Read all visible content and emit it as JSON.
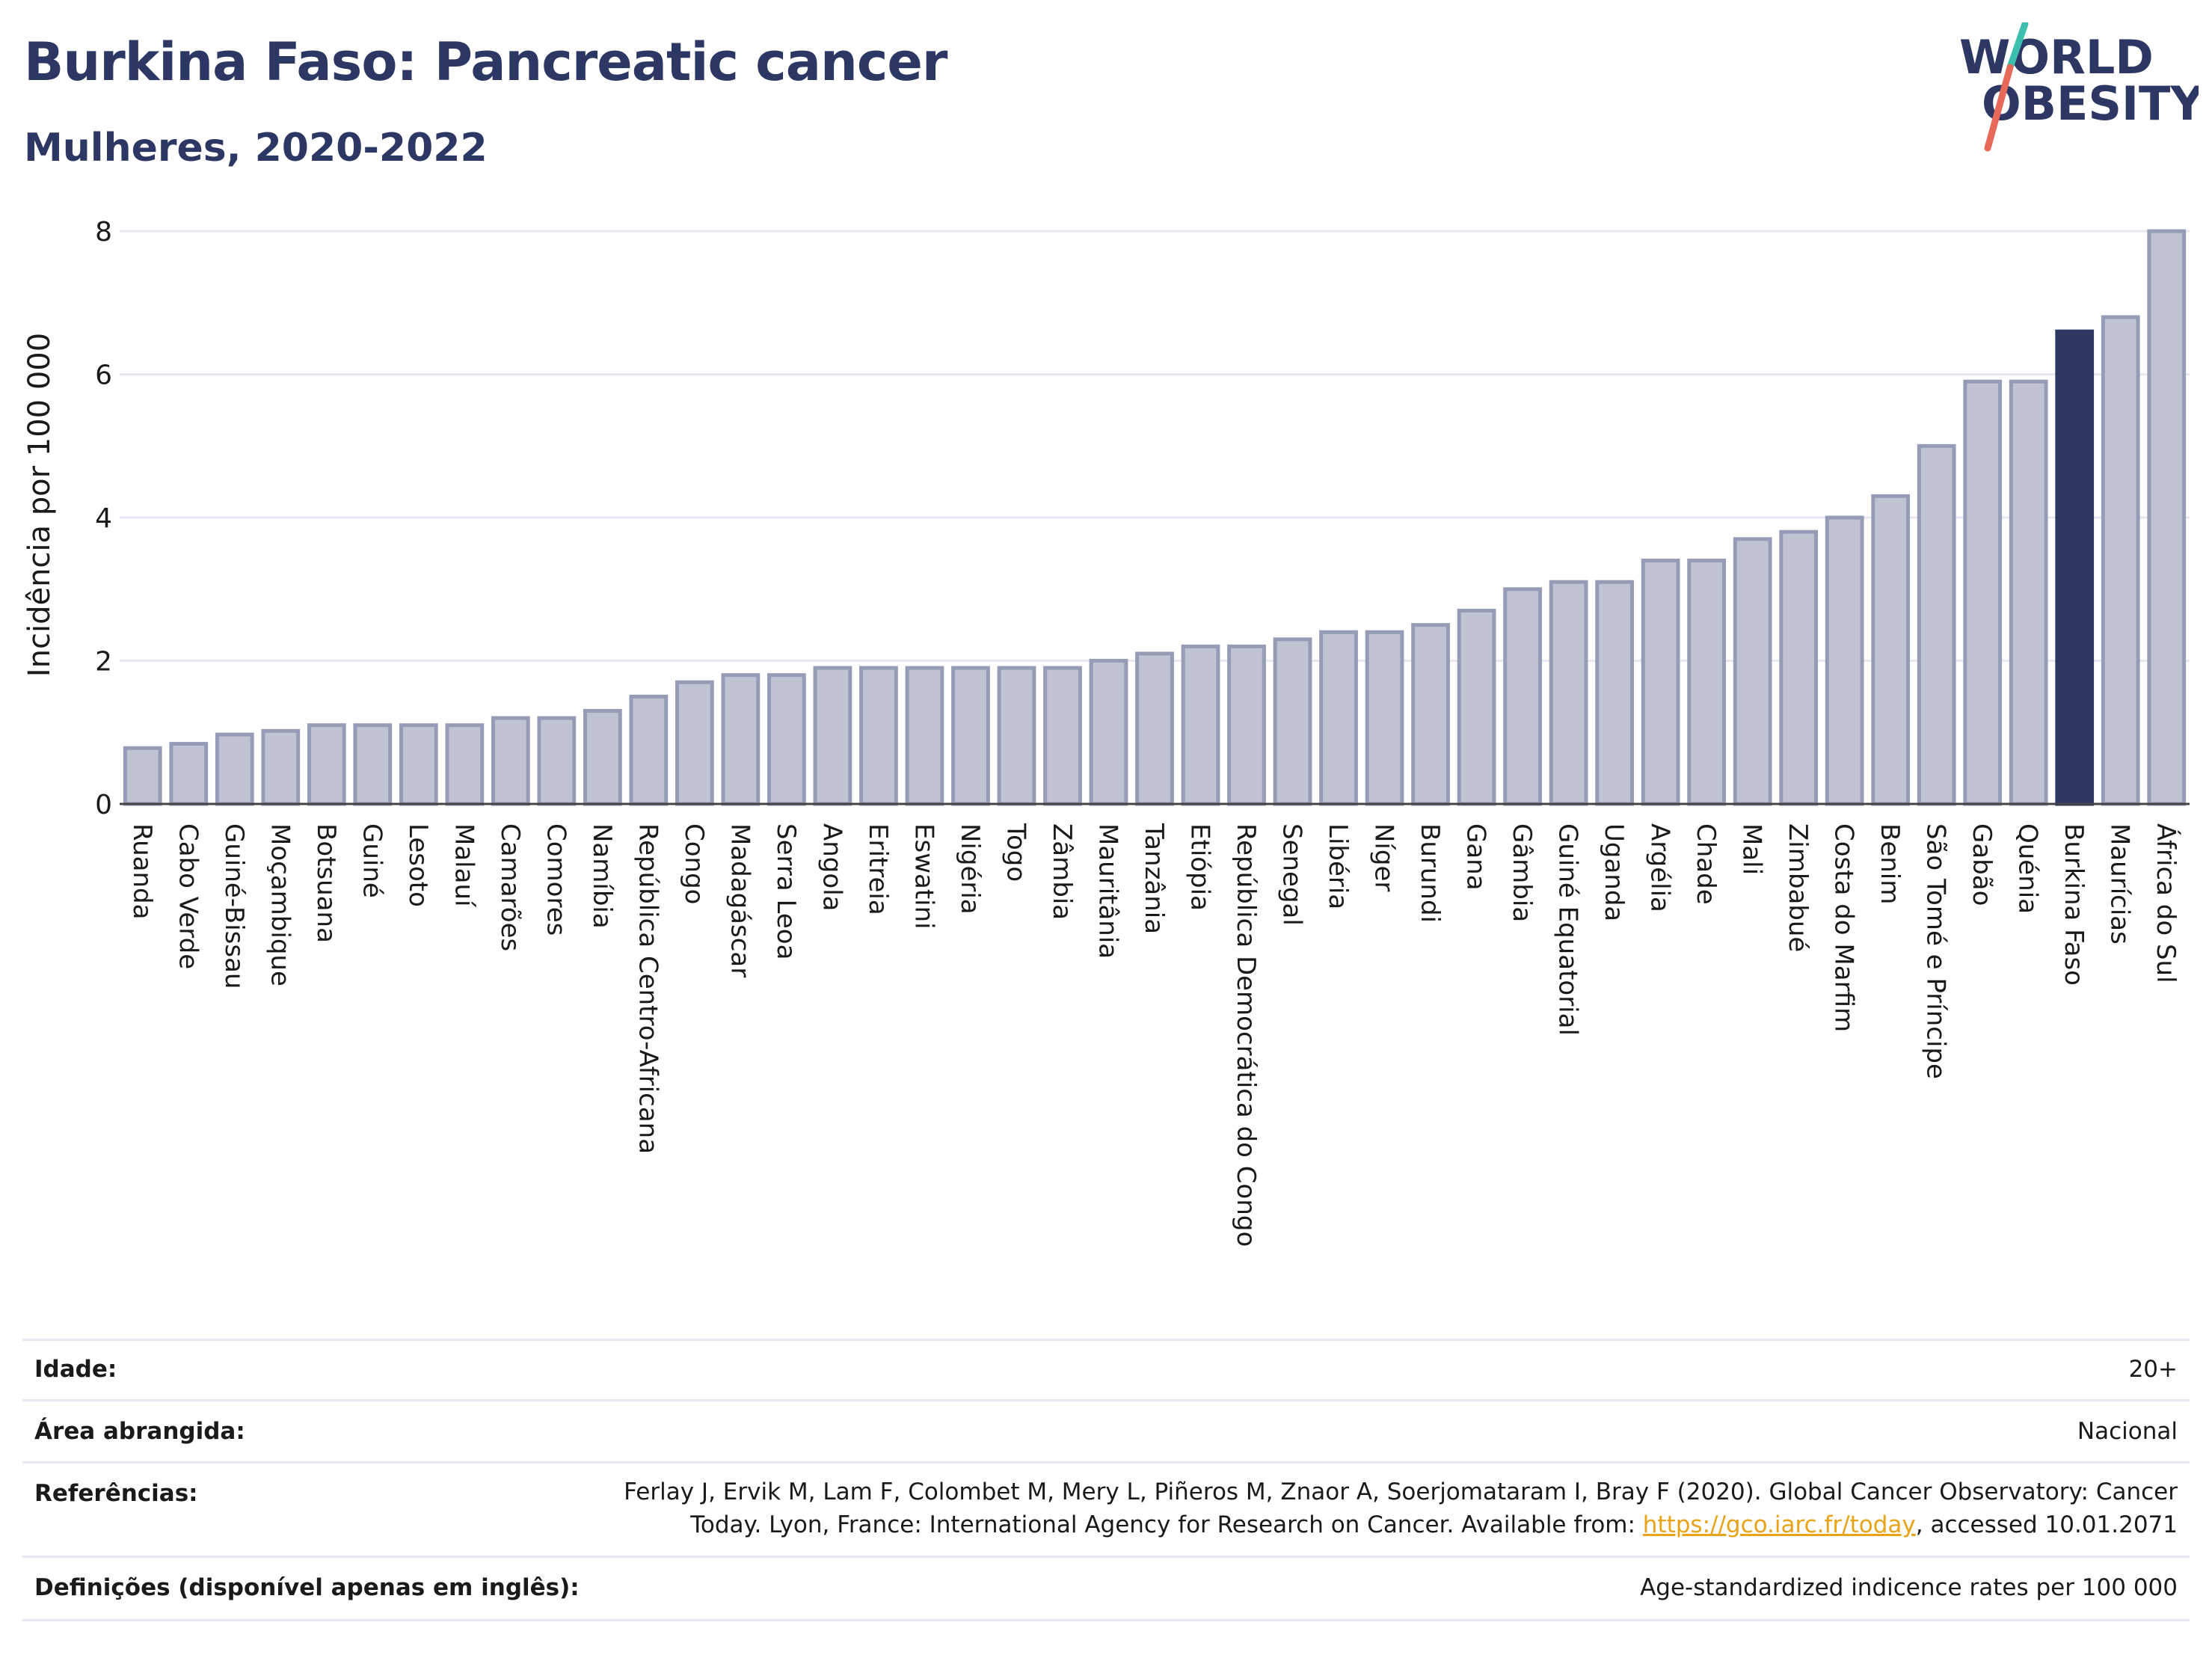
{
  "title": "Burkina Faso: Pancreatic cancer",
  "subtitle": "Mulheres, 2020-2022",
  "logo": {
    "line1": "WORLD",
    "line2": "OBESITY",
    "accent_colors": [
      "#3cbfae",
      "#e8695a"
    ],
    "text_color": "#2c3863"
  },
  "colors": {
    "bar_fill": "#bfc3d2",
    "bar_stroke": "#969cb6",
    "highlight": "#2c3863",
    "grid": "#e6e8ef"
  },
  "chart_data": {
    "type": "bar",
    "ylabel": "Incidência por 100 000",
    "ylim": [
      0,
      8.2
    ],
    "yticks": [
      0,
      2,
      4,
      6,
      8
    ],
    "highlight": "Burkina Faso",
    "categories": [
      "Ruanda",
      "Cabo Verde",
      "Guiné-Bissau",
      "Moçambique",
      "Botsuana",
      "Guiné",
      "Lesoto",
      "Malauí",
      "Camarões",
      "Comores",
      "Namíbia",
      "República Centro-Africana",
      "Congo",
      "Madagáscar",
      "Serra Leoa",
      "Angola",
      "Eritreia",
      "Eswatini",
      "Nigéria",
      "Togo",
      "Zâmbia",
      "Mauritânia",
      "Tanzânia",
      "Etiópia",
      "República Democrática do Congo",
      "Senegal",
      "Libéria",
      "Níger",
      "Burundi",
      "Gana",
      "Gâmbia",
      "Guiné Equatorial",
      "Uganda",
      "Argélia",
      "Chade",
      "Mali",
      "Zimbabué",
      "Costa do Marfim",
      "Benim",
      "São Tomé e Príncipe",
      "Gabão",
      "Quénia",
      "Burkina Faso",
      "Maurícias",
      "África do Sul"
    ],
    "values": [
      0.78,
      0.84,
      0.97,
      1.02,
      1.1,
      1.1,
      1.1,
      1.1,
      1.2,
      1.2,
      1.3,
      1.5,
      1.7,
      1.8,
      1.8,
      1.9,
      1.9,
      1.9,
      1.9,
      1.9,
      1.9,
      2.0,
      2.1,
      2.2,
      2.2,
      2.3,
      2.4,
      2.4,
      2.5,
      2.7,
      3.0,
      3.1,
      3.1,
      3.4,
      3.4,
      3.7,
      3.8,
      4.0,
      4.3,
      5.0,
      5.9,
      5.9,
      6.6,
      6.8,
      8.0
    ]
  },
  "info": {
    "age_label": "Idade:",
    "age_value": "20+",
    "area_label": "Área abrangida:",
    "area_value": "Nacional",
    "references_label": "Referências:",
    "references_line1": "Ferlay J, Ervik M, Lam F, Colombet M, Mery L, Piñeros M, Znaor A, Soerjomataram I, Bray F (2020). Global Cancer Observatory: Cancer",
    "references_line2_pre": "Today. Lyon, France: International Agency for Research on Cancer. Available from: ",
    "references_link": "https://gco.iarc.fr/today",
    "references_line2_post": ", accessed 10.01.2071",
    "definitions_label": "Definições (disponível apenas em inglês):",
    "definitions_value": "Age-standardized indicence rates per 100 000"
  }
}
